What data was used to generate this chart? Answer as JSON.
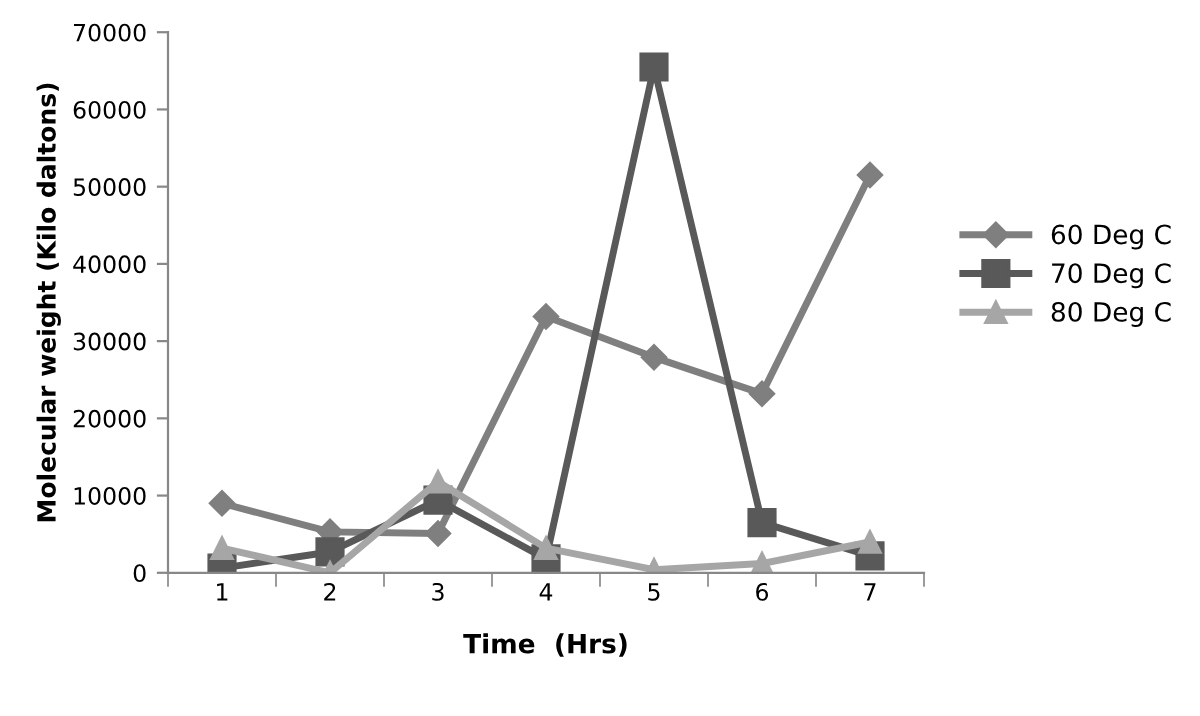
{
  "chart_data": {
    "type": "line",
    "xlabel": "Time  (Hrs)",
    "ylabel": "Molecular weight (Kilo daltons)",
    "categories": [
      "1",
      "2",
      "3",
      "4",
      "5",
      "6",
      "7"
    ],
    "series": [
      {
        "name": "60 Deg C",
        "color": "#7f7f7f",
        "marker": "diamond",
        "values": [
          9000,
          5300,
          5100,
          33200,
          27900,
          23200,
          51500
        ]
      },
      {
        "name": "70 Deg C",
        "color": "#595959",
        "marker": "square",
        "values": [
          600,
          2700,
          9400,
          1800,
          65500,
          6500,
          2200
        ]
      },
      {
        "name": "80 Deg C",
        "color": "#a6a6a6",
        "marker": "triangle",
        "values": [
          3200,
          0,
          11800,
          3200,
          400,
          1200,
          4000
        ]
      }
    ],
    "ylim": [
      0,
      70000
    ],
    "yticks": [
      0,
      10000,
      20000,
      30000,
      40000,
      50000,
      60000,
      70000
    ],
    "grid": false,
    "legend": "right",
    "line_style": "solid"
  }
}
